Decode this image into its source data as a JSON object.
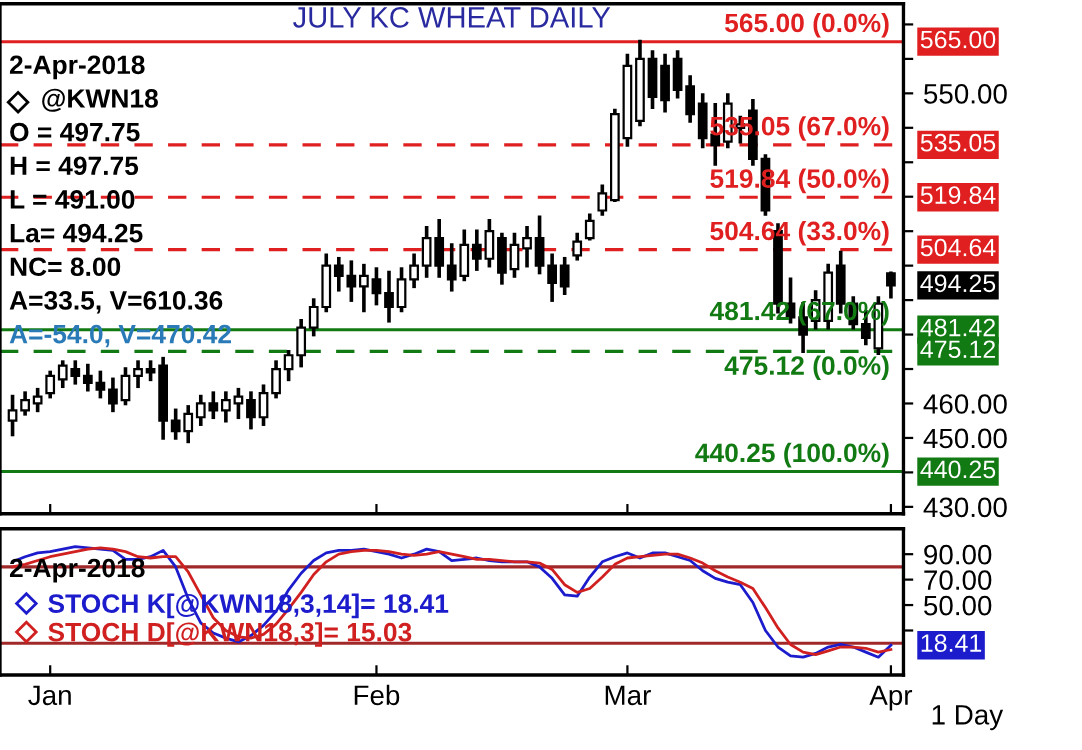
{
  "chart_data": [
    {
      "type": "candlestick",
      "title": "JULY KC WHEAT DAILY",
      "categories": [
        null,
        null,
        null,
        "Jan",
        null,
        null,
        null,
        null,
        null,
        null,
        null,
        null,
        null,
        null,
        null,
        null,
        null,
        null,
        null,
        null,
        null,
        null,
        null,
        null,
        null,
        null,
        null,
        null,
        null,
        "Feb",
        null,
        null,
        null,
        null,
        null,
        null,
        null,
        null,
        null,
        null,
        null,
        null,
        null,
        null,
        null,
        null,
        null,
        null,
        null,
        "Mar",
        null,
        null,
        null,
        null,
        null,
        null,
        null,
        null,
        null,
        null,
        null,
        null,
        null,
        null,
        null,
        null,
        null,
        null,
        null,
        null,
        "Apr"
      ],
      "ohlc": [
        [
          455,
          462,
          451,
          458
        ],
        [
          458,
          463,
          457,
          461
        ],
        [
          460,
          464,
          458,
          462
        ],
        [
          463,
          469,
          462,
          468
        ],
        [
          467,
          472,
          465,
          471
        ],
        [
          470,
          472,
          466,
          468
        ],
        [
          468,
          471,
          464,
          466
        ],
        [
          466,
          469,
          462,
          464
        ],
        [
          464,
          467,
          458,
          460
        ],
        [
          461,
          470,
          460,
          468
        ],
        [
          468,
          472,
          465,
          470
        ],
        [
          470,
          472,
          467,
          469
        ],
        [
          471,
          473,
          450,
          455
        ],
        [
          455,
          458,
          450,
          452
        ],
        [
          452,
          459,
          449,
          457
        ],
        [
          456,
          462,
          454,
          460
        ],
        [
          460,
          463,
          456,
          458
        ],
        [
          458,
          463,
          455,
          461
        ],
        [
          460,
          464,
          456,
          462
        ],
        [
          461,
          463,
          453,
          456
        ],
        [
          456,
          465,
          454,
          463
        ],
        [
          463,
          472,
          462,
          470
        ],
        [
          470,
          475,
          467,
          474
        ],
        [
          474,
          484,
          471,
          482
        ],
        [
          482,
          490,
          480,
          488
        ],
        [
          488,
          503,
          487,
          500
        ],
        [
          500,
          502,
          493,
          497
        ],
        [
          497,
          501,
          490,
          494
        ],
        [
          494,
          500,
          487,
          497
        ],
        [
          496,
          499,
          489,
          492
        ],
        [
          492,
          498,
          484,
          488
        ],
        [
          488,
          499,
          487,
          496
        ],
        [
          496,
          503,
          494,
          500
        ],
        [
          500,
          511,
          497,
          508
        ],
        [
          508,
          513,
          497,
          500
        ],
        [
          500,
          506,
          493,
          496
        ],
        [
          497,
          510,
          496,
          506
        ],
        [
          506,
          510,
          499,
          502
        ],
        [
          502,
          513,
          500,
          510
        ],
        [
          508,
          509,
          495,
          498
        ],
        [
          499,
          509,
          497,
          506
        ],
        [
          505,
          511,
          500,
          508
        ],
        [
          508,
          514,
          498,
          500
        ],
        [
          500,
          503,
          490,
          495
        ],
        [
          500,
          502,
          492,
          494
        ],
        [
          503,
          509,
          502,
          507
        ],
        [
          508,
          514.6,
          507.8,
          513
        ],
        [
          516,
          523,
          515,
          521
        ],
        [
          519,
          545,
          519,
          544
        ],
        [
          537,
          561,
          535,
          558
        ],
        [
          542,
          565,
          541,
          560
        ],
        [
          560,
          562,
          546,
          549
        ],
        [
          558,
          561,
          545,
          548
        ],
        [
          560,
          562,
          549,
          551
        ],
        [
          552,
          554.7,
          542,
          544
        ],
        [
          547,
          549.5,
          534.6,
          537
        ],
        [
          538,
          546.7,
          529.5,
          535
        ],
        [
          536,
          549.5,
          534.6,
          547
        ],
        [
          540,
          543,
          536,
          541
        ],
        [
          545,
          547.8,
          529.5,
          531
        ],
        [
          531,
          531.8,
          515,
          516
        ],
        [
          510,
          511.8,
          486.6,
          489
        ],
        [
          489,
          496,
          483.7,
          485
        ],
        [
          485,
          488.9,
          475.2,
          480
        ],
        [
          484,
          492.3,
          482,
          490
        ],
        [
          484,
          500,
          482,
          498
        ],
        [
          500,
          503.8,
          486.6,
          489
        ],
        [
          489,
          490.6,
          482,
          483
        ],
        [
          483,
          486.6,
          477.4,
          479
        ],
        [
          476,
          490.6,
          474.6,
          489
        ],
        [
          497.75,
          497.75,
          491,
          494.25
        ]
      ],
      "ylim": [
        428,
        576
      ],
      "yticks": [
        {
          "value": 430,
          "label": "430.00"
        },
        {
          "value": 440,
          "label": null
        },
        {
          "value": 450,
          "label": "450.00"
        },
        {
          "value": 460,
          "label": "460.00"
        },
        {
          "value": 470,
          "label": null
        },
        {
          "value": 480,
          "label": null
        },
        {
          "value": 490,
          "label": null
        },
        {
          "value": 500,
          "label": null
        },
        {
          "value": 510,
          "label": null
        },
        {
          "value": 520,
          "label": null
        },
        {
          "value": 530,
          "label": null
        },
        {
          "value": 540,
          "label": null
        },
        {
          "value": 550,
          "label": "550.00"
        },
        {
          "value": 560,
          "label": null
        },
        {
          "value": 570,
          "label": null
        }
      ],
      "tick_labels": "y",
      "grid": false,
      "ref_lines": [
        {
          "axis": "y",
          "value": 565.0,
          "label": "565.00 (0.0%)",
          "color": "#e02020",
          "line_style": "solid"
        },
        {
          "axis": "y",
          "value": 535.05,
          "label": "535.05 (67.0%)",
          "color": "#e02020",
          "line_style": "dashed"
        },
        {
          "axis": "y",
          "value": 519.84,
          "label": "519.84 (50.0%)",
          "color": "#e02020",
          "line_style": "dashed"
        },
        {
          "axis": "y",
          "value": 504.64,
          "label": "504.64 (33.0%)",
          "color": "#e02020",
          "line_style": "dashed"
        },
        {
          "axis": "y",
          "value": 481.42,
          "label": "481.42 (67.0%)",
          "color": "#127a12",
          "line_style": "solid"
        },
        {
          "axis": "y",
          "value": 475.12,
          "label": "475.12 (0.0%)",
          "color": "#127a12",
          "line_style": "dashed"
        },
        {
          "axis": "y",
          "value": 440.25,
          "label": "440.25 (100.0%)",
          "color": "#127a12",
          "line_style": "solid"
        }
      ],
      "annotations": [
        {
          "text": "565.00",
          "x": "Apr",
          "y": 565.0
        },
        {
          "text": "535.05",
          "x": "Apr",
          "y": 535.05
        },
        {
          "text": "519.84",
          "x": "Apr",
          "y": 519.84
        },
        {
          "text": "504.64",
          "x": "Apr",
          "y": 504.64
        },
        {
          "text": "494.25",
          "x": "Apr",
          "y": 494.25
        },
        {
          "text": "481.42",
          "x": "Apr",
          "y": 481.42
        },
        {
          "text": "475.12",
          "x": "Apr",
          "y": 475.12
        },
        {
          "text": "440.25",
          "x": "Apr",
          "y": 440.25
        },
        "2-Apr-2018",
        "@KWN18",
        "O = 497.75",
        "H = 497.75",
        "L = 491.00",
        "La= 494.25",
        "NC= 8.00",
        "A=33.5, V=610.36",
        "A=-54.0, V=470.42"
      ]
    },
    {
      "type": "line",
      "categories": [
        null,
        null,
        null,
        "Jan",
        null,
        null,
        null,
        null,
        null,
        null,
        null,
        null,
        null,
        null,
        null,
        null,
        null,
        null,
        null,
        null,
        null,
        null,
        null,
        null,
        null,
        null,
        null,
        null,
        null,
        "Feb",
        null,
        null,
        null,
        null,
        null,
        null,
        null,
        null,
        null,
        null,
        null,
        null,
        null,
        null,
        null,
        null,
        null,
        null,
        null,
        "Mar",
        null,
        null,
        null,
        null,
        null,
        null,
        null,
        null,
        null,
        null,
        null,
        null,
        null,
        null,
        null,
        null,
        null,
        null,
        null,
        null,
        "Apr"
      ],
      "series": [
        {
          "name": "STOCH K[@KWN18,3,14]= 18.41",
          "color": "#1c1ccc",
          "values": [
            84,
            88,
            91,
            92,
            94,
            96,
            95,
            94,
            93,
            86,
            86,
            88,
            93,
            80,
            55,
            36,
            28,
            24,
            21,
            26,
            34,
            45,
            62,
            75,
            85,
            91,
            93,
            93,
            94,
            92,
            90,
            87,
            90,
            94,
            92,
            85,
            86,
            87,
            85,
            84,
            84,
            84,
            80,
            71,
            58,
            57,
            72,
            84,
            88,
            91,
            87,
            91,
            91,
            88,
            85,
            77,
            71,
            68,
            66,
            52,
            30,
            17,
            10,
            9,
            12,
            17,
            19,
            17,
            13,
            9,
            18.41
          ]
        },
        {
          "name": "STOCH D[@KWN18,3]= 15.03",
          "color": "#d02020",
          "values": [
            80,
            82,
            85,
            88,
            90,
            92,
            94,
            95,
            94,
            92,
            88,
            87,
            88,
            88,
            76,
            58,
            40,
            30,
            25,
            24,
            27,
            35,
            47,
            60,
            74,
            84,
            90,
            92,
            93,
            93,
            92,
            90,
            89,
            90,
            92,
            90,
            88,
            86,
            86,
            85,
            84,
            84,
            83,
            78,
            66,
            60,
            63,
            72,
            82,
            87,
            88,
            89,
            90,
            90,
            87,
            83,
            77,
            72,
            68,
            63,
            48,
            32,
            19,
            13,
            11,
            14,
            17,
            17,
            16,
            13,
            15.03
          ]
        }
      ],
      "ylim": [
        -5,
        110
      ],
      "yticks": [
        {
          "value": 30,
          "label": null
        },
        {
          "value": 50,
          "label": "50.00"
        },
        {
          "value": 70,
          "label": "70.00"
        },
        {
          "value": 90,
          "label": "90.00"
        }
      ],
      "grid": false,
      "legend": "left",
      "marker": "none",
      "line_style": "solid",
      "ref_lines": [
        {
          "axis": "y",
          "value": 80,
          "color": "#a02828"
        },
        {
          "axis": "y",
          "value": 20,
          "color": "#a02828"
        }
      ],
      "annotations": [
        {
          "text": "18.41",
          "x": "Apr",
          "y": 18.41
        },
        "2-Apr-2018",
        "1 Day"
      ]
    }
  ]
}
